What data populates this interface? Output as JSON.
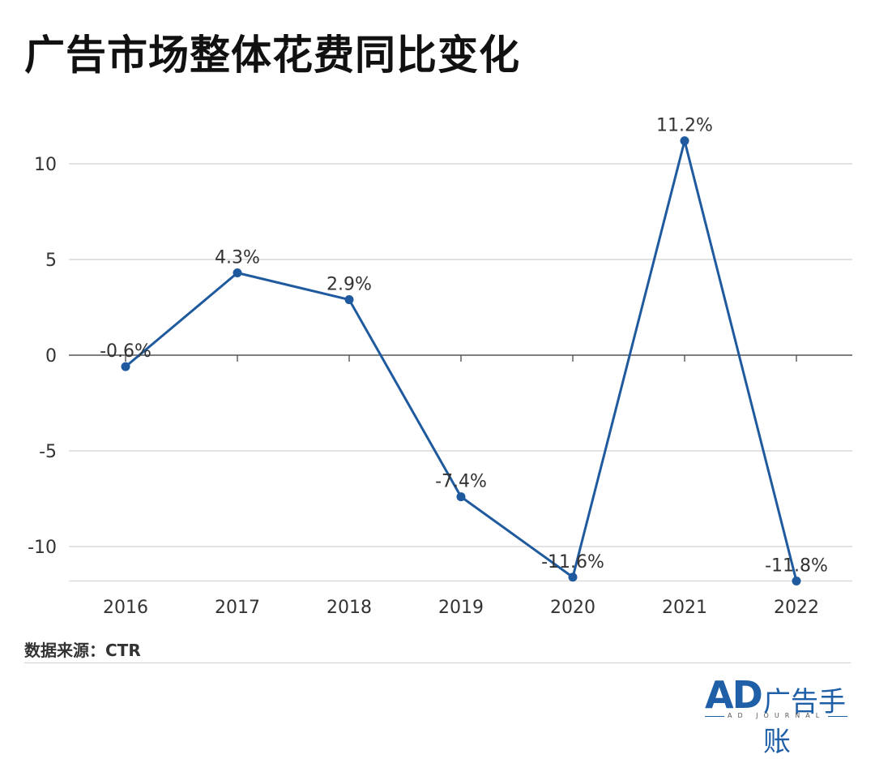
{
  "title": "广告市场整体花费同比变化",
  "source": "数据来源：CTR",
  "logo": {
    "mark": "AD",
    "name": "广告手账",
    "tagline": "AD JOURNAL"
  },
  "colors": {
    "line": "#1f5a9e",
    "grid": "#d9d9d9",
    "zero_axis": "#555555",
    "text": "#333333"
  },
  "chart_data": {
    "type": "line",
    "categories": [
      "2016",
      "2017",
      "2018",
      "2019",
      "2020",
      "2021",
      "2022"
    ],
    "values": [
      -0.6,
      4.3,
      2.9,
      -7.4,
      -11.6,
      11.2,
      -11.8
    ],
    "labels": [
      "-0.6%",
      "4.3%",
      "2.9%",
      "-7.4%",
      "-11.6%",
      "11.2%",
      "-11.8%"
    ],
    "yticks": [
      10,
      5,
      0,
      -5,
      -10
    ],
    "ytick_labels": [
      "10",
      "5",
      "0",
      "-5",
      "-10"
    ],
    "ylim": [
      -11.8,
      13.5
    ],
    "grid": true,
    "legend": "none"
  }
}
